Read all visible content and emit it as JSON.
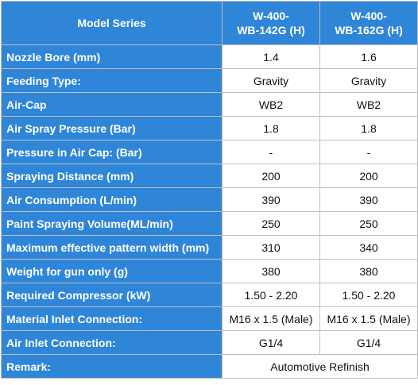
{
  "table": {
    "header": {
      "label": "Model Series",
      "models": [
        {
          "line1": "W-400-",
          "line2": "WB-142G (H)"
        },
        {
          "line1": "W-400-",
          "line2": "WB-162G (H)"
        }
      ]
    },
    "rows": [
      {
        "label": "Nozzle Bore (mm)",
        "values": [
          "1.4",
          "1.6"
        ]
      },
      {
        "label": "Feeding Type:",
        "values": [
          "Gravity",
          "Gravity"
        ]
      },
      {
        "label": "Air-Cap",
        "values": [
          "WB2",
          "WB2"
        ]
      },
      {
        "label": "Air Spray Pressure (Bar)",
        "values": [
          "1.8",
          "1.8"
        ]
      },
      {
        "label": "Pressure in Air Cap: (Bar)",
        "values": [
          "-",
          "-"
        ]
      },
      {
        "label": "Spraying Distance (mm)",
        "values": [
          "200",
          "200"
        ]
      },
      {
        "label": "Air Consumption (L/min)",
        "values": [
          "390",
          "390"
        ]
      },
      {
        "label": "Paint Spraying Volume(ML/min)",
        "values": [
          "250",
          "250"
        ]
      },
      {
        "label": "Maximum effective pattern width (mm)",
        "values": [
          "310",
          "340"
        ]
      },
      {
        "label": "Weight for gun only (g)",
        "values": [
          "380",
          "380"
        ]
      },
      {
        "label": "Required Compressor (kW)",
        "values": [
          "1.50 - 2.20",
          "1.50 - 2.20"
        ]
      },
      {
        "label": "Material Inlet Connection:",
        "values": [
          "M16 x 1.5 (Male)",
          "M16 x 1.5 (Male)"
        ]
      },
      {
        "label": "Air Inlet Connection:",
        "values": [
          "G1/4",
          "G1/4"
        ]
      }
    ],
    "remark": {
      "label": "Remark:",
      "value": "Automotive Refinish"
    },
    "colors": {
      "header_bg": "#2f86d8",
      "header_text": "#ffffff",
      "border": "#bfbfbf"
    }
  }
}
